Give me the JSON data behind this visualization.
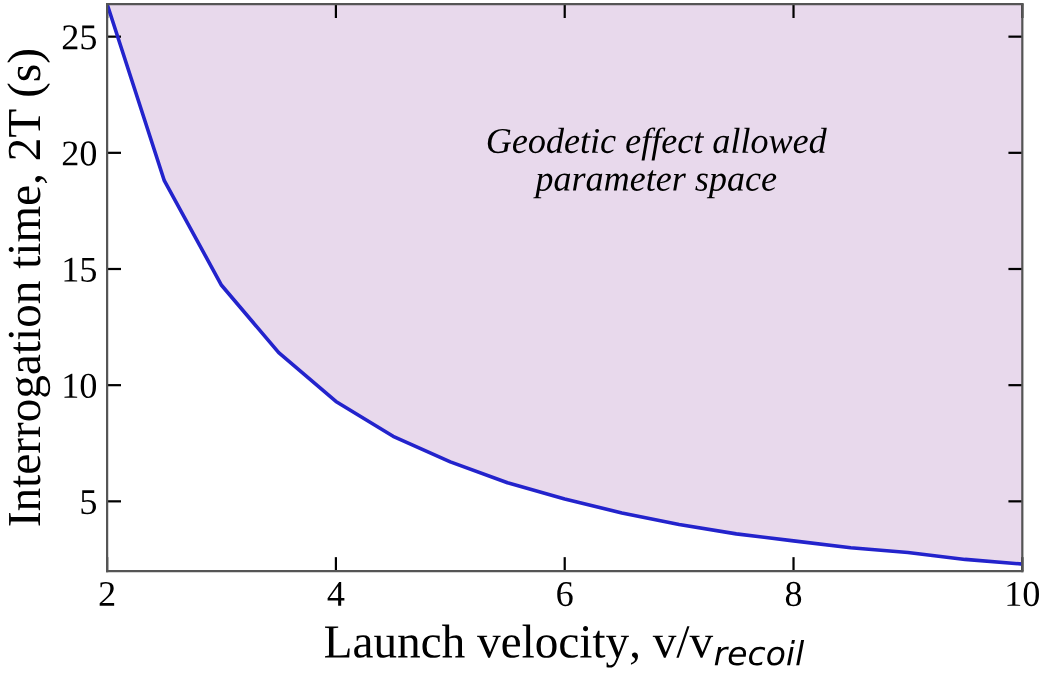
{
  "chart_data": {
    "type": "line",
    "xlabel": "Launch velocity, v/v$_{recoil}$",
    "ylabel": "Interrogation time, 2T (s)",
    "x": [
      2,
      2.5,
      3,
      3.5,
      4,
      4.5,
      5,
      5.5,
      6,
      6.5,
      7,
      7.5,
      8,
      8.5,
      9,
      9.5,
      10
    ],
    "series": [
      {
        "color": "#2323cc",
        "values": [
          26.4,
          18.8,
          14.3,
          11.4,
          9.3,
          7.8,
          6.7,
          5.8,
          5.1,
          4.5,
          4.0,
          3.6,
          3.3,
          3.0,
          2.8,
          2.5,
          2.3
        ],
        "lower": [
          26.4,
          18.8,
          14.3,
          11.4,
          9.3,
          7.8,
          6.7,
          5.8,
          5.1,
          4.5,
          4.0,
          3.6,
          3.3,
          3.0,
          2.8,
          2.5,
          2.3
        ],
        "upper": [
          26.4,
          26.4,
          26.4,
          26.4,
          26.4,
          26.4,
          26.4,
          26.4,
          26.4,
          26.4,
          26.4,
          26.4,
          26.4,
          26.4,
          26.4,
          26.4,
          26.4
        ]
      }
    ],
    "annotations": [
      "Geodetic effect allowed\nparameter space"
    ],
    "xlim": [
      2,
      10
    ],
    "ylim": [
      2,
      26.4
    ],
    "xticks": [
      2,
      4,
      6,
      8,
      10
    ],
    "yticks": [
      5,
      10,
      15,
      20,
      25
    ],
    "grid": false,
    "legend": false,
    "marker": "none",
    "line_style": "solid"
  }
}
